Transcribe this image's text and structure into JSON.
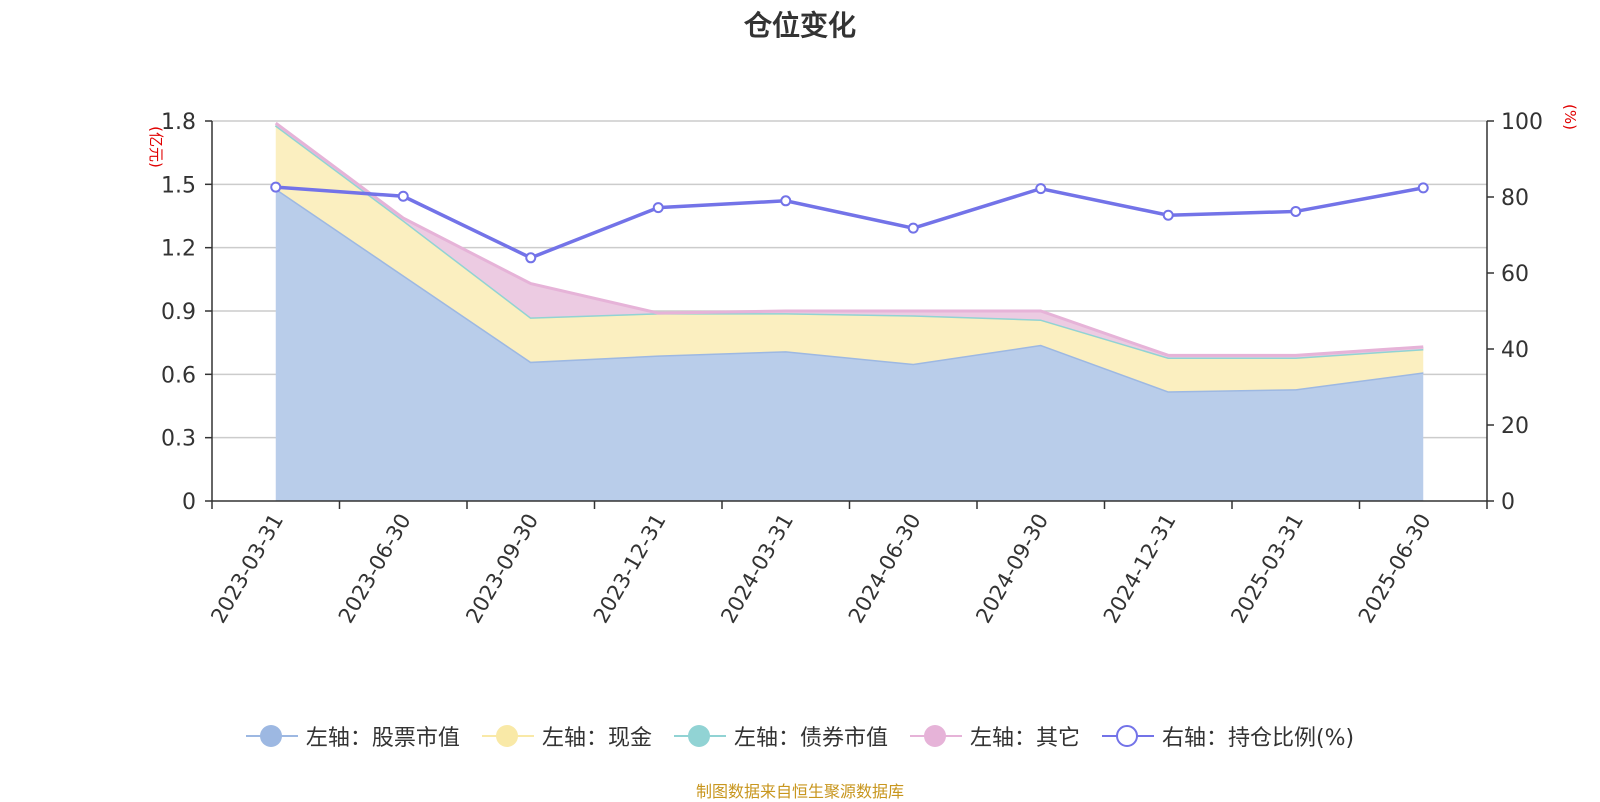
{
  "title": "仓位变化",
  "source": "制图数据来自恒生聚源数据库",
  "chart_data": {
    "type": "area",
    "categories": [
      "2023-03-31",
      "2023-06-30",
      "2023-09-30",
      "2023-12-31",
      "2024-03-31",
      "2024-06-30",
      "2024-09-30",
      "2024-12-31",
      "2025-03-31",
      "2025-06-30"
    ],
    "left_axis": {
      "unit": "(亿元)",
      "ylim": [
        0,
        1.8
      ],
      "ticks": [
        "0",
        "0.3",
        "0.6",
        "0.9",
        "1.2",
        "1.5",
        "1.8"
      ]
    },
    "right_axis": {
      "unit": "(%)",
      "ylim": [
        0,
        100
      ],
      "ticks": [
        "0",
        "20",
        "40",
        "60",
        "80",
        "100"
      ]
    },
    "grid": true,
    "stacked": true,
    "series": [
      {
        "name": "左轴：股票市值",
        "axis": "left",
        "color": "#9db8e2",
        "fill": "#b9cdea",
        "values": [
          1.48,
          1.07,
          0.66,
          0.69,
          0.71,
          0.65,
          0.74,
          0.52,
          0.53,
          0.61
        ]
      },
      {
        "name": "左轴：现金",
        "axis": "left",
        "color": "#f9e9a7",
        "fill": "#fbefc0",
        "values": [
          0.3,
          0.26,
          0.21,
          0.2,
          0.18,
          0.23,
          0.12,
          0.16,
          0.15,
          0.11
        ]
      },
      {
        "name": "左轴：债券市值",
        "axis": "left",
        "color": "#91d3d4",
        "fill": "#a9dddd",
        "values": [
          0,
          0,
          0,
          0,
          0,
          0,
          0,
          0,
          0,
          0
        ]
      },
      {
        "name": "左轴：其它",
        "axis": "left",
        "color": "#e6b3d8",
        "fill": "#eccbe2",
        "values": [
          0.01,
          0.01,
          0.16,
          0.0,
          0.01,
          0.02,
          0.04,
          0.01,
          0.01,
          0.01
        ]
      },
      {
        "name": "右轴：持仓比例(%)",
        "axis": "right",
        "type": "line",
        "color": "#7373e8",
        "values": [
          82.6,
          80.2,
          64.0,
          77.2,
          79.0,
          71.8,
          82.2,
          75.2,
          76.2,
          82.4
        ]
      }
    ],
    "legend_position": "bottom"
  }
}
